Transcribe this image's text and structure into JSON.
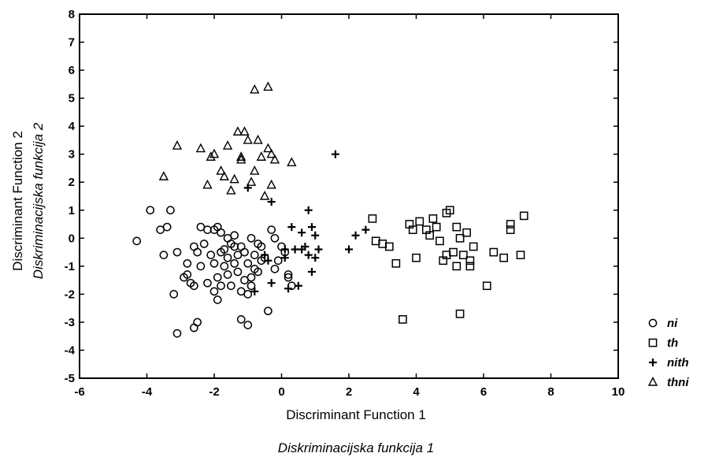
{
  "chart_data": {
    "type": "scatter",
    "title": "",
    "xlabel": "Discriminant Function 1",
    "xlabel2": "Diskriminacijska funkcija 1",
    "ylabel": "Discriminant Function 2",
    "ylabel2": "Diskriminacijska funkcija 2",
    "xlim": [
      -6,
      10
    ],
    "ylim": [
      -5,
      8
    ],
    "xticks": [
      "-6",
      "-4",
      "-2",
      "0",
      "2",
      "4",
      "6",
      "8",
      "10"
    ],
    "yticks": [
      "8",
      "7",
      "6",
      "5",
      "4",
      "3",
      "2",
      "1",
      "0",
      "-1",
      "-2",
      "-3",
      "-4",
      "-5"
    ],
    "grid": false,
    "legend_position": "right",
    "series": [
      {
        "name": "ni",
        "marker": "circle",
        "points": [
          [
            -4.3,
            -0.1
          ],
          [
            -3.9,
            1.0
          ],
          [
            -3.6,
            0.3
          ],
          [
            -3.4,
            0.4
          ],
          [
            -3.3,
            1.0
          ],
          [
            -3.5,
            -0.6
          ],
          [
            -3.1,
            -0.5
          ],
          [
            -3.2,
            -2.0
          ],
          [
            -2.9,
            -1.4
          ],
          [
            -2.8,
            -0.9
          ],
          [
            -2.7,
            -1.6
          ],
          [
            -2.6,
            -0.3
          ],
          [
            -2.5,
            -0.5
          ],
          [
            -2.4,
            0.4
          ],
          [
            -2.3,
            -0.2
          ],
          [
            -2.2,
            0.3
          ],
          [
            -2.1,
            -0.6
          ],
          [
            -2.0,
            0.3
          ],
          [
            -1.9,
            0.4
          ],
          [
            -1.8,
            0.2
          ],
          [
            -1.7,
            -0.4
          ],
          [
            -1.6,
            0.0
          ],
          [
            -1.5,
            -0.2
          ],
          [
            -1.4,
            0.1
          ],
          [
            -1.3,
            -0.6
          ],
          [
            -1.2,
            -0.3
          ],
          [
            -1.1,
            -0.5
          ],
          [
            -1.0,
            -0.9
          ],
          [
            -0.9,
            -1.4
          ],
          [
            -0.8,
            -0.6
          ],
          [
            -0.7,
            -0.2
          ],
          [
            -0.6,
            -0.8
          ],
          [
            -0.5,
            -0.7
          ],
          [
            -0.4,
            -2.6
          ],
          [
            -0.3,
            0.3
          ],
          [
            -0.2,
            -1.1
          ],
          [
            -0.1,
            -0.8
          ],
          [
            0.0,
            -0.3
          ],
          [
            0.1,
            -0.5
          ],
          [
            0.2,
            -1.3
          ],
          [
            0.3,
            -1.7
          ],
          [
            -2.4,
            -1.0
          ],
          [
            -2.2,
            -1.6
          ],
          [
            -2.0,
            -1.9
          ],
          [
            -1.9,
            -2.2
          ],
          [
            -1.8,
            -1.7
          ],
          [
            -1.7,
            -1.0
          ],
          [
            -1.6,
            -1.3
          ],
          [
            -1.5,
            -1.7
          ],
          [
            -1.4,
            -0.9
          ],
          [
            -1.3,
            -1.2
          ],
          [
            -1.2,
            -1.9
          ],
          [
            -1.1,
            -1.5
          ],
          [
            -1.0,
            -2.0
          ],
          [
            -0.9,
            -1.7
          ],
          [
            -0.8,
            -1.1
          ],
          [
            -2.6,
            -1.7
          ],
          [
            -2.8,
            -1.3
          ],
          [
            -2.5,
            -3.0
          ],
          [
            -2.6,
            -3.2
          ],
          [
            -3.1,
            -3.4
          ],
          [
            -1.2,
            -2.9
          ],
          [
            -1.0,
            -3.1
          ],
          [
            -1.9,
            -1.4
          ],
          [
            -1.6,
            -0.7
          ],
          [
            -1.4,
            -0.3
          ],
          [
            -2.0,
            -0.9
          ],
          [
            -1.8,
            -0.5
          ],
          [
            -0.6,
            -0.3
          ],
          [
            -0.9,
            0.0
          ],
          [
            -0.2,
            0.0
          ],
          [
            0.2,
            -1.4
          ],
          [
            -0.7,
            -1.2
          ]
        ]
      },
      {
        "name": "th",
        "marker": "square",
        "points": [
          [
            2.7,
            0.7
          ],
          [
            2.8,
            -0.1
          ],
          [
            3.0,
            -0.2
          ],
          [
            3.2,
            -0.3
          ],
          [
            3.4,
            -0.9
          ],
          [
            3.6,
            -2.9
          ],
          [
            3.8,
            0.5
          ],
          [
            3.9,
            0.3
          ],
          [
            4.0,
            -0.7
          ],
          [
            4.1,
            0.6
          ],
          [
            4.3,
            0.3
          ],
          [
            4.4,
            0.1
          ],
          [
            4.5,
            0.7
          ],
          [
            4.6,
            0.4
          ],
          [
            4.7,
            -0.1
          ],
          [
            4.8,
            -0.8
          ],
          [
            4.9,
            0.9
          ],
          [
            5.0,
            1.0
          ],
          [
            5.1,
            -0.5
          ],
          [
            5.2,
            -1.0
          ],
          [
            5.3,
            0.0
          ],
          [
            5.3,
            -2.7
          ],
          [
            5.4,
            -0.6
          ],
          [
            5.5,
            0.2
          ],
          [
            5.6,
            -0.8
          ],
          [
            5.6,
            -1.0
          ],
          [
            6.1,
            -1.7
          ],
          [
            6.3,
            -0.5
          ],
          [
            6.6,
            -0.7
          ],
          [
            6.8,
            0.5
          ],
          [
            6.8,
            0.3
          ],
          [
            7.1,
            -0.6
          ],
          [
            7.2,
            0.8
          ],
          [
            5.2,
            0.4
          ],
          [
            4.9,
            -0.6
          ],
          [
            5.7,
            -0.3
          ]
        ]
      },
      {
        "name": "nith",
        "marker": "plus",
        "points": [
          [
            -0.3,
            1.3
          ],
          [
            -0.5,
            -0.6
          ],
          [
            0.1,
            -0.4
          ],
          [
            0.3,
            0.4
          ],
          [
            0.6,
            0.2
          ],
          [
            0.7,
            -0.3
          ],
          [
            0.8,
            1.0
          ],
          [
            0.9,
            0.4
          ],
          [
            1.0,
            0.1
          ],
          [
            1.0,
            -0.7
          ],
          [
            0.9,
            -1.2
          ],
          [
            0.5,
            -1.7
          ],
          [
            0.2,
            -1.8
          ],
          [
            1.1,
            -0.4
          ],
          [
            2.0,
            -0.4
          ],
          [
            2.2,
            0.1
          ],
          [
            2.5,
            0.3
          ],
          [
            1.6,
            3.0
          ],
          [
            -0.8,
            -1.9
          ],
          [
            0.6,
            -0.4
          ],
          [
            0.8,
            -0.6
          ],
          [
            0.1,
            -0.7
          ],
          [
            -0.4,
            -0.8
          ],
          [
            -1.0,
            1.8
          ],
          [
            -0.3,
            -1.6
          ],
          [
            0.4,
            -0.4
          ]
        ]
      },
      {
        "name": "thni",
        "marker": "triangle",
        "points": [
          [
            -3.5,
            2.2
          ],
          [
            -3.1,
            3.3
          ],
          [
            -2.4,
            3.2
          ],
          [
            -2.2,
            1.9
          ],
          [
            -2.1,
            2.9
          ],
          [
            -2.0,
            3.0
          ],
          [
            -1.8,
            2.4
          ],
          [
            -1.7,
            2.2
          ],
          [
            -1.6,
            3.3
          ],
          [
            -1.5,
            1.7
          ],
          [
            -1.4,
            2.1
          ],
          [
            -1.3,
            3.8
          ],
          [
            -1.2,
            2.8
          ],
          [
            -1.1,
            3.8
          ],
          [
            -1.0,
            3.5
          ],
          [
            -0.9,
            2.0
          ],
          [
            -0.8,
            2.4
          ],
          [
            -0.7,
            3.5
          ],
          [
            -0.6,
            2.9
          ],
          [
            -0.5,
            1.5
          ],
          [
            -0.4,
            3.2
          ],
          [
            -0.3,
            1.9
          ],
          [
            0.3,
            2.7
          ],
          [
            -0.8,
            5.3
          ],
          [
            -0.4,
            5.4
          ],
          [
            -1.2,
            2.9
          ],
          [
            -0.2,
            2.8
          ],
          [
            -0.3,
            3.0
          ]
        ]
      }
    ]
  }
}
